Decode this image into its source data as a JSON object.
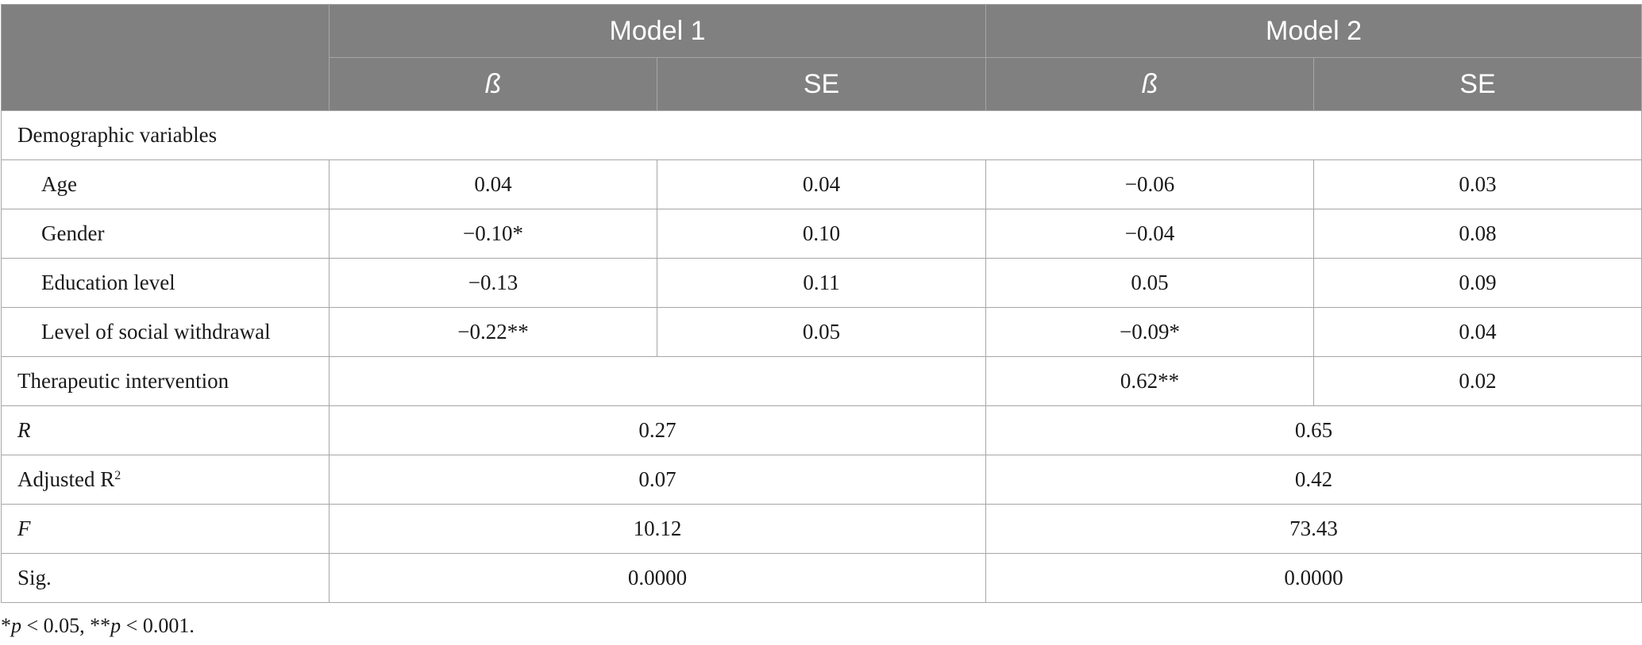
{
  "header": {
    "model1": "Model 1",
    "model2": "Model 2",
    "beta": "ß",
    "se": "SE"
  },
  "rows": {
    "demographic": {
      "label": "Demographic variables"
    },
    "age": {
      "label": "Age",
      "m1_beta": "0.04",
      "m1_se": "0.04",
      "m2_beta": "−0.06",
      "m2_se": "0.03"
    },
    "gender": {
      "label": "Gender",
      "m1_beta": "−0.10*",
      "m1_se": "0.10",
      "m2_beta": "−0.04",
      "m2_se": "0.08"
    },
    "education": {
      "label": "Education level",
      "m1_beta": "−0.13",
      "m1_se": "0.11",
      "m2_beta": "0.05",
      "m2_se": "0.09"
    },
    "withdrawal": {
      "label": "Level of social withdrawal",
      "m1_beta": "−0.22**",
      "m1_se": "0.05",
      "m2_beta": "−0.09*",
      "m2_se": "0.04"
    },
    "therapeutic": {
      "label": "Therapeutic intervention",
      "m1_beta": "",
      "m2_beta": "0.62**",
      "m2_se": "0.02"
    },
    "r": {
      "label": "R",
      "m1": "0.27",
      "m2": "0.65"
    },
    "adj_r2": {
      "label": "Adjusted R",
      "sup": "2",
      "m1": "0.07",
      "m2": "0.42"
    },
    "f": {
      "label": "F",
      "m1": "10.12",
      "m2": "73.43"
    },
    "sig": {
      "label": "Sig.",
      "m1": "0.0000",
      "m2": "0.0000"
    }
  },
  "footnote": {
    "star1": "*",
    "p1": "p",
    "lt1": " < 0.05, **",
    "p2": "p",
    "lt2": " < 0.001."
  }
}
